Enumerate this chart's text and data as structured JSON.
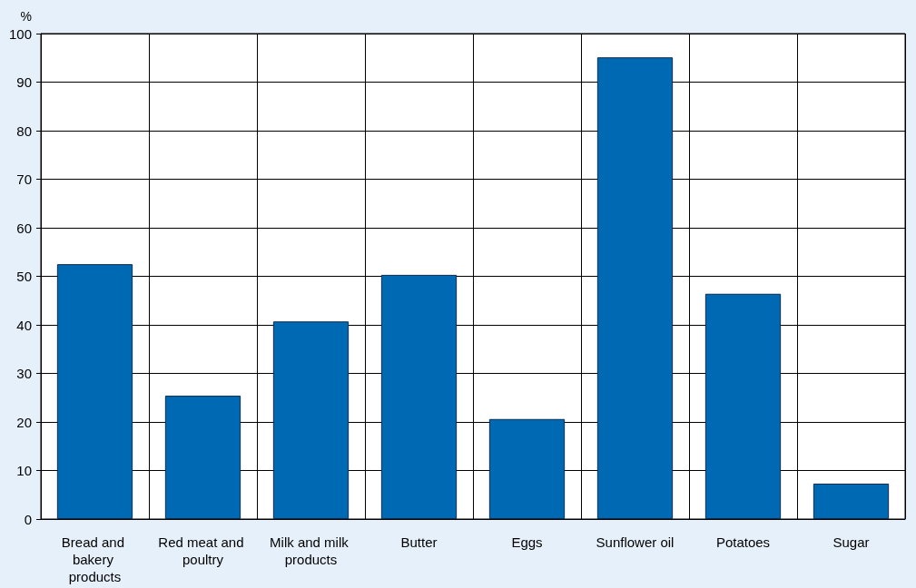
{
  "chart_data": {
    "type": "bar",
    "ylabel": "%",
    "categories": [
      "Bread and bakery products",
      "Red meat and poultry",
      "Milk and milk products",
      "Butter",
      "Eggs",
      "Sunflower oil",
      "Potatoes",
      "Sugar"
    ],
    "values": [
      52.5,
      25.4,
      40.7,
      50.3,
      20.6,
      95.1,
      46.4,
      7.3
    ],
    "color": "#0069b4",
    "ylim": [
      0,
      100
    ],
    "yticks": [
      0,
      10,
      20,
      30,
      40,
      50,
      60,
      70,
      80,
      90,
      100
    ],
    "grid": true
  }
}
